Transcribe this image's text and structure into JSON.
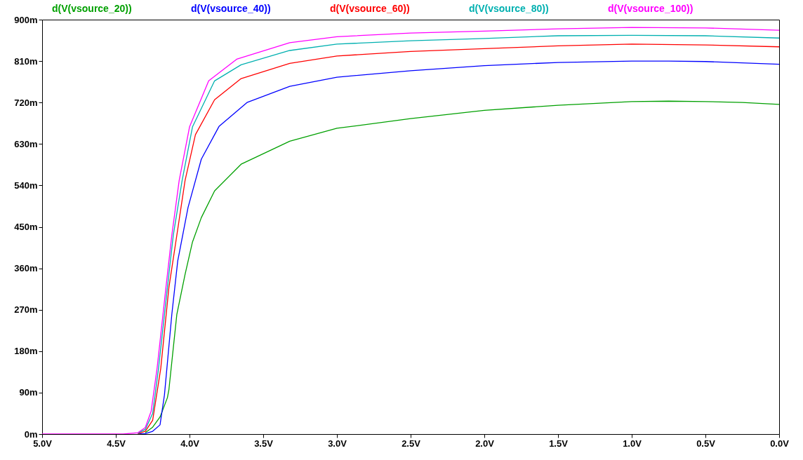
{
  "chart_data": {
    "type": "line",
    "xlim": [
      5.0,
      0.0
    ],
    "xticks": [
      {
        "value": 5.0,
        "label": "5.0V"
      },
      {
        "value": 4.5,
        "label": "4.5V"
      },
      {
        "value": 4.0,
        "label": "4.0V"
      },
      {
        "value": 3.5,
        "label": "3.5V"
      },
      {
        "value": 3.0,
        "label": "3.0V"
      },
      {
        "value": 2.5,
        "label": "2.5V"
      },
      {
        "value": 2.0,
        "label": "2.0V"
      },
      {
        "value": 1.5,
        "label": "1.5V"
      },
      {
        "value": 1.0,
        "label": "1.0V"
      },
      {
        "value": 0.5,
        "label": "0.5V"
      },
      {
        "value": 0.0,
        "label": "0.0V"
      }
    ],
    "ylim": [
      0,
      900
    ],
    "yticks": [
      {
        "value": 0,
        "label": "0m"
      },
      {
        "value": 90,
        "label": "90m"
      },
      {
        "value": 180,
        "label": "180m"
      },
      {
        "value": 270,
        "label": "270m"
      },
      {
        "value": 360,
        "label": "360m"
      },
      {
        "value": 450,
        "label": "450m"
      },
      {
        "value": 540,
        "label": "540m"
      },
      {
        "value": 630,
        "label": "630m"
      },
      {
        "value": 720,
        "label": "720m"
      },
      {
        "value": 810,
        "label": "810m"
      },
      {
        "value": 900,
        "label": "900m"
      }
    ],
    "grid": false,
    "legend": "top",
    "marker": "none",
    "line_style": "solid",
    "series": [
      {
        "name": "d(V(vsource_20))",
        "color": "#00a000",
        "x": [
          4.3,
          4.25,
          4.2,
          4.15,
          4.14,
          4.086,
          4.03,
          3.98,
          3.92,
          3.83,
          3.65,
          3.32,
          3.0,
          2.5,
          2.0,
          1.5,
          1.0,
          0.75,
          0.5,
          0.25,
          0.0
        ],
        "values": [
          3,
          15,
          37,
          79,
          96,
          260,
          347,
          417,
          470,
          528,
          586,
          636,
          664,
          685,
          703,
          714,
          722,
          723,
          722,
          720,
          716
        ]
      },
      {
        "name": "d(V(vsource_40))",
        "color": "#0000ff",
        "x": [
          4.35,
          4.3,
          4.25,
          4.2,
          4.17,
          4.12,
          4.08,
          4.01,
          3.92,
          3.8,
          3.61,
          3.32,
          3.0,
          2.5,
          2.0,
          1.5,
          1.0,
          0.75,
          0.5,
          0.0
        ],
        "values": [
          0,
          1,
          6,
          20,
          85,
          260,
          376,
          492,
          597,
          668,
          720,
          755,
          775,
          789,
          800,
          807,
          810,
          810,
          809,
          803
        ]
      },
      {
        "name": "d(V(vsource_60))",
        "color": "#ff0000",
        "x": [
          4.35,
          4.3,
          4.25,
          4.195,
          4.14,
          4.086,
          4.03,
          3.96,
          3.83,
          3.65,
          3.32,
          3.0,
          2.5,
          2.0,
          1.5,
          1.0,
          0.5,
          0.0
        ],
        "values": [
          1,
          6,
          30,
          143,
          318,
          432,
          551,
          650,
          726,
          772,
          805,
          821,
          831,
          837,
          843,
          847,
          845,
          841
        ]
      },
      {
        "name": "d(V(vsource_80))",
        "color": "#00b0b0",
        "x": [
          4.35,
          4.3,
          4.25,
          4.21,
          4.15,
          4.11,
          4.05,
          3.98,
          3.83,
          3.65,
          3.32,
          3.0,
          2.5,
          2.0,
          1.5,
          1.0,
          0.5,
          0.0
        ],
        "values": [
          2,
          10,
          45,
          143,
          318,
          432,
          551,
          667,
          767,
          802,
          833,
          847,
          854,
          859,
          865,
          866,
          865,
          860
        ]
      },
      {
        "name": "d(V(vsource_100))",
        "color": "#ff00ff",
        "x": [
          5.0,
          4.45,
          4.35,
          4.3,
          4.26,
          4.22,
          4.16,
          4.12,
          4.07,
          4.0,
          3.87,
          3.68,
          3.32,
          3.0,
          2.5,
          2.0,
          1.5,
          1.0,
          0.5,
          0.0
        ],
        "values": [
          0,
          0,
          3,
          14,
          50,
          143,
          318,
          432,
          551,
          667,
          767,
          814,
          850,
          863,
          871,
          875,
          880,
          883,
          882,
          877
        ]
      }
    ]
  }
}
